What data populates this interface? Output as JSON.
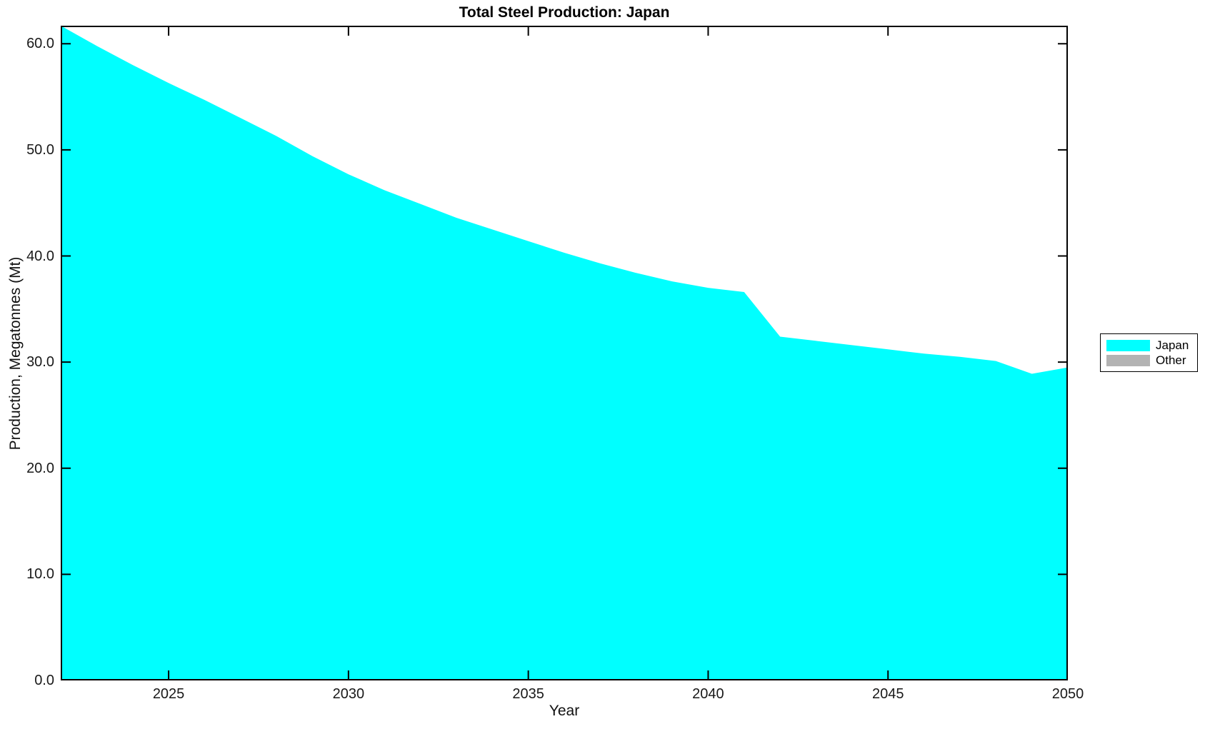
{
  "title": "Total Steel Production: Japan",
  "x_axis": {
    "label": "Year",
    "tick_labels": [
      "2025",
      "2030",
      "2035",
      "2040",
      "2045",
      "2050"
    ],
    "tick_years": [
      2025,
      2030,
      2035,
      2040,
      2045,
      2050
    ]
  },
  "y_axis": {
    "label": "Production, Megatonnes (Mt)",
    "tick_labels": [
      "0.0",
      "10.0",
      "20.0",
      "30.0",
      "40.0",
      "50.0",
      "60.0"
    ],
    "tick_values": [
      0,
      10,
      20,
      30,
      40,
      50,
      60
    ]
  },
  "legend": {
    "position": "right-outside",
    "items": [
      {
        "label": "Japan",
        "color": "#00ffff"
      },
      {
        "label": "Other",
        "color": "#b3b3b3"
      }
    ]
  },
  "chart_data": {
    "type": "area",
    "title": "Total Steel Production: Japan",
    "xlabel": "Year",
    "ylabel": "Production, Megatonnes (Mt)",
    "xlim": [
      2022,
      2050
    ],
    "ylim": [
      0,
      61.7
    ],
    "grid": false,
    "legend_position": "right-outside",
    "x": [
      2022,
      2023,
      2024,
      2025,
      2026,
      2027,
      2028,
      2029,
      2030,
      2031,
      2032,
      2033,
      2034,
      2035,
      2036,
      2037,
      2038,
      2039,
      2040,
      2041,
      2042,
      2043,
      2044,
      2045,
      2046,
      2047,
      2048,
      2049,
      2050
    ],
    "series": [
      {
        "name": "Japan",
        "color": "#00ffff",
        "values": [
          61.7,
          59.8,
          58.0,
          56.3,
          54.7,
          53.0,
          51.3,
          49.4,
          47.7,
          46.2,
          44.9,
          43.6,
          42.5,
          41.4,
          40.3,
          39.3,
          38.4,
          37.6,
          37.0,
          36.6,
          32.4,
          32.0,
          31.6,
          31.2,
          30.8,
          30.5,
          30.1,
          28.9,
          29.5
        ]
      },
      {
        "name": "Other",
        "color": "#b3b3b3",
        "values": [
          0,
          0,
          0,
          0,
          0,
          0,
          0,
          0,
          0,
          0,
          0,
          0,
          0,
          0,
          0,
          0,
          0,
          0,
          0,
          0,
          0,
          0,
          0,
          0,
          0,
          0,
          0,
          0,
          0
        ]
      }
    ]
  }
}
